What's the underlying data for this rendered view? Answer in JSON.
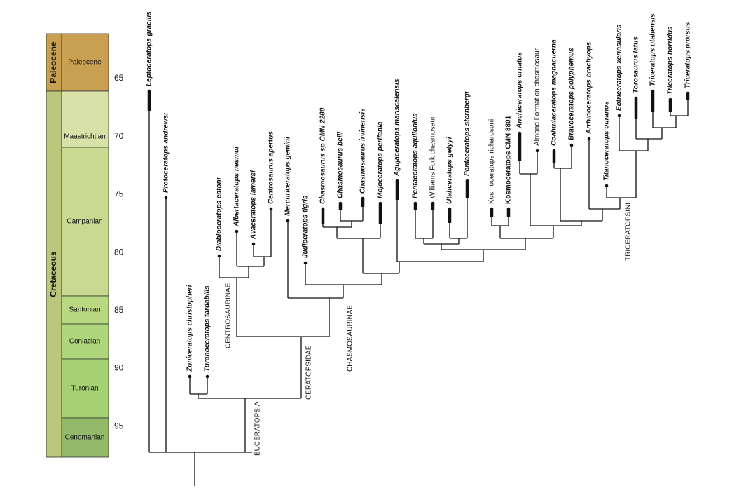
{
  "timescale": {
    "periods": [
      "Paleocene",
      "Cretaceous"
    ],
    "stages": [
      "Paleocene",
      "Maastrichtian",
      "Campanian",
      "Santonian",
      "Coniacian",
      "Turonian",
      "Cenomanian"
    ],
    "ages": [
      65,
      70,
      75,
      80,
      85,
      90,
      95
    ]
  },
  "taxa": [
    "Leptoceratops gracilis",
    "Protoceratops andrewsi",
    "Zuniceratops christopheri",
    "Turanoceratops tardabilis",
    "Diabloceratops eatoni",
    "Albertaceratops nesmoi",
    "Avaceratops lamersi",
    "Centrosaurus apertus",
    "Mercuriceratops gemini",
    "Judiceratops tigris",
    "Chasmosaurus sp CMN 2280",
    "Chasmosaurus belli",
    "Chasmosaurus irvinensis",
    "Mojoceratops perifania",
    "Agujaceratops mariscalensis",
    "Pentaceratops aquilonius",
    "Williams Fork chasmosaur",
    "Utahceratops getyyi",
    "Pentaceratops sternbergi",
    "Kosmoceratops richardsoni",
    "Kosmoceratops CMN 8801",
    "Anchiceratops ornatus",
    "Almond Formation chasmosaur",
    "Coahuilaceratops magnacuerna",
    "Bravoceratops polyphemus",
    "Arrhinoceratops brachyops",
    "Titanoceratops ouranos",
    "Eotriceratops xerinsularis",
    "Torosaurus latus",
    "Triceratops utahensis",
    "Triceratops horridus",
    "Triceratops prorsus"
  ],
  "clades": [
    "EUCERATOPSIA",
    "CERATOPSIDAE",
    "CENTROSAURINAE",
    "CHASMOSAURINAE",
    "TRICERATOPSINI"
  ]
}
